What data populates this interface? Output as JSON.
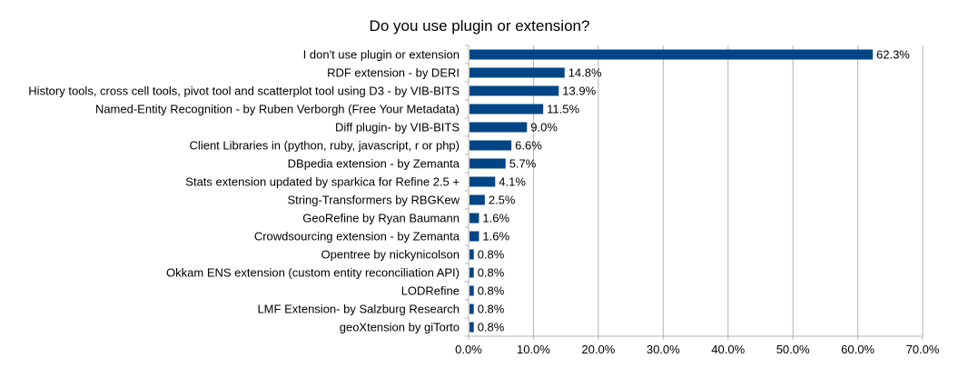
{
  "chart_data": {
    "type": "bar",
    "orientation": "horizontal",
    "title": "Do you use plugin or extension?",
    "xlabel": "",
    "ylabel": "",
    "xlim": [
      0,
      70
    ],
    "x_ticks": [
      "0.0%",
      "10.0%",
      "20.0%",
      "30.0%",
      "40.0%",
      "50.0%",
      "60.0%",
      "70.0%"
    ],
    "grid": "vertical",
    "legend": "none",
    "bar_color": "#004586",
    "categories": [
      "I don't use plugin or extension",
      "RDF extension - by DERI",
      "History tools, cross cell tools, pivot tool and scatterplot tool using D3 - by VIB-BITS",
      "Named-Entity Recognition - by Ruben Verborgh (Free Your Metadata)",
      "Diff plugin- by VIB-BITS",
      "Client Libraries in (python, ruby, javascript, r or php)",
      "DBpedia extension - by Zemanta",
      "Stats extension updated by sparkica for Refine 2.5 +",
      "String-Transformers by RBGKew",
      "GeoRefine by Ryan Baumann",
      "Crowdsourcing extension - by Zemanta",
      "Opentree by nickynicolson",
      "Okkam ENS extension (custom entity reconciliation API)",
      "LODRefine",
      "LMF Extension- by Salzburg Research",
      "geoXtension by giTorto"
    ],
    "values": [
      62.3,
      14.8,
      13.9,
      11.5,
      9.0,
      6.6,
      5.7,
      4.1,
      2.5,
      1.6,
      1.6,
      0.8,
      0.8,
      0.8,
      0.8,
      0.8
    ],
    "data_labels": [
      "62.3%",
      "14.8%",
      "13.9%",
      "11.5%",
      "9.0%",
      "6.6%",
      "5.7%",
      "4.1%",
      "2.5%",
      "1.6%",
      "1.6%",
      "0.8%",
      "0.8%",
      "0.8%",
      "0.8%",
      "0.8%"
    ]
  }
}
